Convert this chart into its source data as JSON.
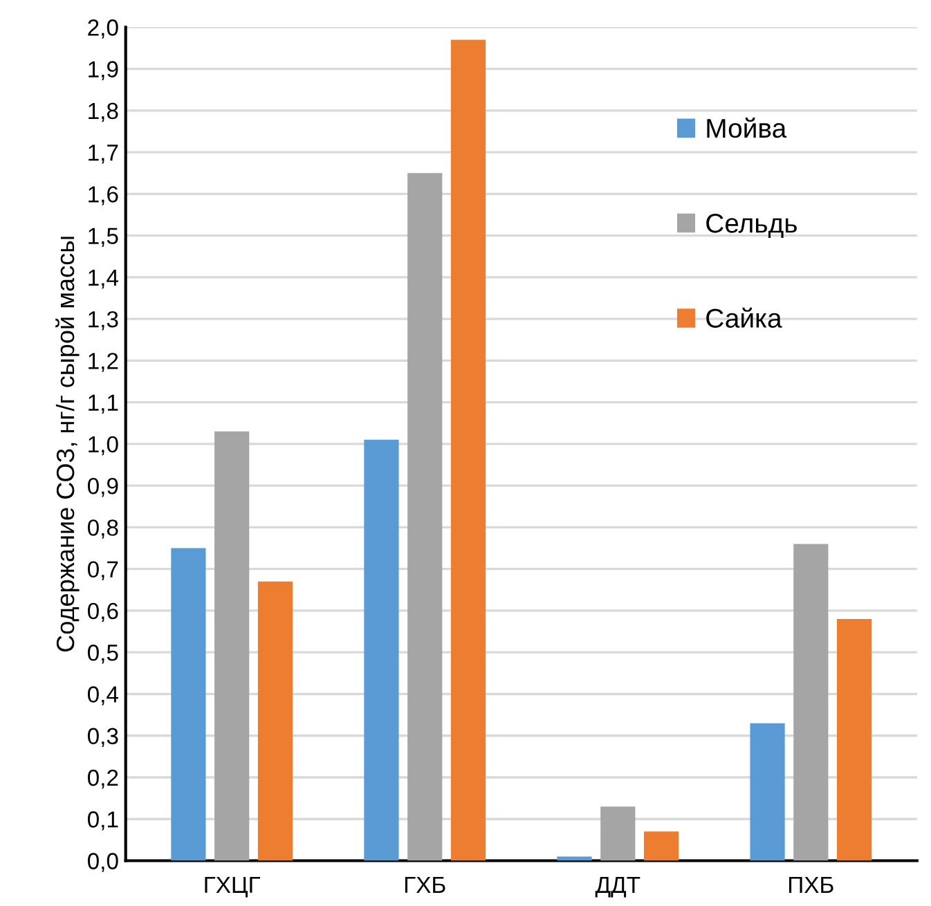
{
  "chart_data": {
    "type": "bar",
    "ylabel": "Содержание СОЗ, нг/г сырой массы",
    "categories": [
      "ГХЦГ",
      "ГХБ",
      "ДДТ",
      "ПХБ"
    ],
    "series": [
      {
        "name": "Мойва",
        "color": "#5b9bd5",
        "values": [
          0.75,
          1.01,
          0.01,
          0.33
        ]
      },
      {
        "name": "Сельдь",
        "color": "#a5a5a5",
        "values": [
          1.03,
          1.65,
          0.13,
          0.76
        ]
      },
      {
        "name": "Сайка",
        "color": "#ed7d31",
        "values": [
          0.67,
          1.97,
          0.07,
          0.58
        ]
      }
    ],
    "ylim": [
      0,
      2.0
    ],
    "yticks": [
      {
        "value": 0,
        "label": "0,0"
      },
      {
        "value": 0.1,
        "label": "0,1"
      },
      {
        "value": 0.2,
        "label": "0,2"
      },
      {
        "value": 0.3,
        "label": "0,3"
      },
      {
        "value": 0.4,
        "label": "0,4"
      },
      {
        "value": 0.5,
        "label": "0,5"
      },
      {
        "value": 0.6,
        "label": "0,6"
      },
      {
        "value": 0.7,
        "label": "0,7"
      },
      {
        "value": 0.8,
        "label": "0,8"
      },
      {
        "value": 0.9,
        "label": "0,9"
      },
      {
        "value": 1.0,
        "label": "1,0"
      },
      {
        "value": 1.1,
        "label": "1,1"
      },
      {
        "value": 1.2,
        "label": "1,2"
      },
      {
        "value": 1.3,
        "label": "1,3"
      },
      {
        "value": 1.4,
        "label": "1,4"
      },
      {
        "value": 1.5,
        "label": "1,5"
      },
      {
        "value": 1.6,
        "label": "1,6"
      },
      {
        "value": 1.7,
        "label": "1,7"
      },
      {
        "value": 1.8,
        "label": "1,8"
      },
      {
        "value": 1.9,
        "label": "1,9"
      },
      {
        "value": 2.0,
        "label": "2,0"
      }
    ],
    "grid": "y",
    "legend": "top right"
  }
}
